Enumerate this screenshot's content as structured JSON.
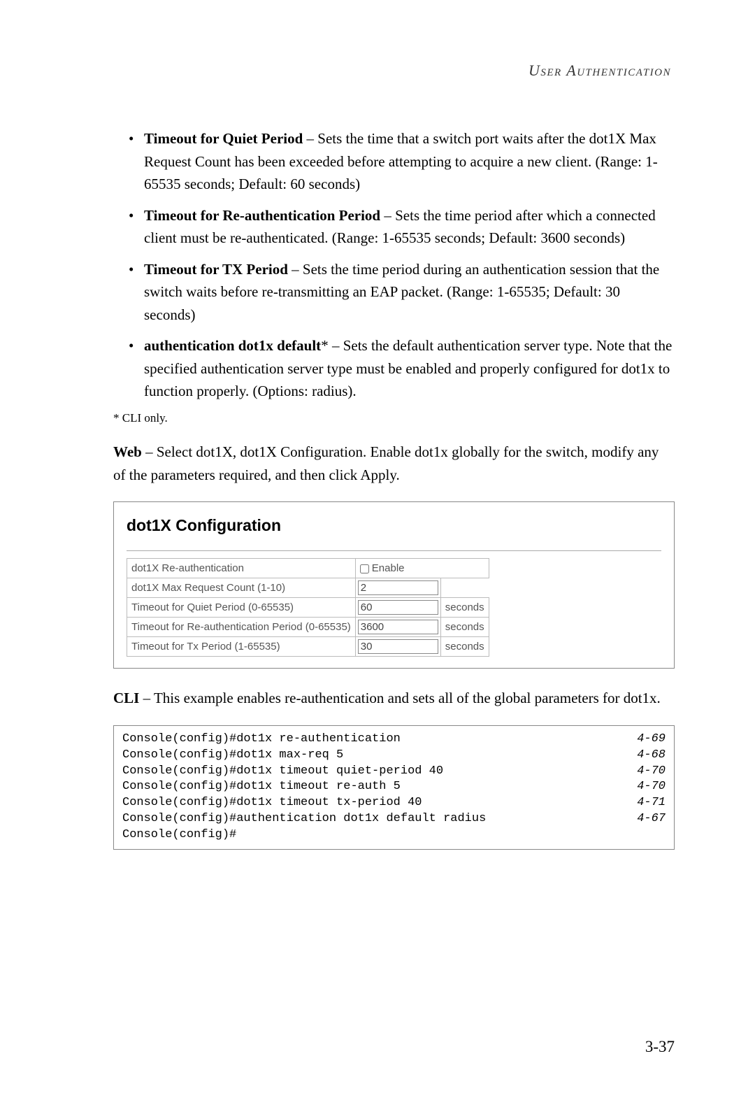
{
  "header": "User Authentication",
  "bullets": [
    {
      "title": "Timeout for Quiet Period",
      "text": " – Sets the time that a switch port waits after the dot1X Max Request Count has been exceeded before attempting to acquire a new client. (Range: 1-65535 seconds; Default: 60 seconds)"
    },
    {
      "title": "Timeout for Re-authentication Period",
      "text": " – Sets the time period after which a connected client must be re-authenticated. (Range: 1-65535 seconds; Default: 3600 seconds)"
    },
    {
      "title": "Timeout for TX Period",
      "text": " – Sets the time period during an authentication session that the switch waits before re-transmitting an EAP packet. (Range: 1-65535; Default: 30 seconds)"
    },
    {
      "title": "authentication dot1x default",
      "text": "* – Sets the default authentication server type. Note that the specified authentication server type must be enabled and properly configured for dot1x to function properly. (Options: radius)."
    }
  ],
  "footnote": "* CLI only.",
  "web_prefix": "Web",
  "web_text": " – Select dot1X, dot1X Configuration. Enable dot1x globally for the switch, modify any of the parameters required, and then click Apply.",
  "panel": {
    "title": "dot1X Configuration",
    "rows": [
      {
        "label": "dot1X Re-authentication",
        "type": "checkbox",
        "checkbox_label": "Enable",
        "checked": false
      },
      {
        "label": "dot1X Max Request Count (1-10)",
        "type": "text",
        "value": "2",
        "unit": ""
      },
      {
        "label": "Timeout for Quiet Period (0-65535)",
        "type": "text",
        "value": "60",
        "unit": "seconds"
      },
      {
        "label": "Timeout for Re-authentication Period (0-65535)",
        "type": "text",
        "value": "3600",
        "unit": "seconds"
      },
      {
        "label": "Timeout for Tx Period (1-65535)",
        "type": "text",
        "value": "30",
        "unit": "seconds"
      }
    ]
  },
  "cli_prefix": "CLI",
  "cli_text": " – This example enables re-authentication and sets all of the global parameters for dot1x.",
  "cli_lines": [
    {
      "cmd": "Console(config)#dot1x re-authentication",
      "ref": "4-69"
    },
    {
      "cmd": "Console(config)#dot1x max-req 5",
      "ref": "4-68"
    },
    {
      "cmd": "Console(config)#dot1x timeout quiet-period 40",
      "ref": "4-70"
    },
    {
      "cmd": "Console(config)#dot1x timeout re-auth 5",
      "ref": "4-70"
    },
    {
      "cmd": "Console(config)#dot1x timeout tx-period 40",
      "ref": "4-71"
    },
    {
      "cmd": "Console(config)#authentication dot1x default radius",
      "ref": "4-67"
    },
    {
      "cmd": "Console(config)#",
      "ref": ""
    }
  ],
  "page_number": "3-37"
}
